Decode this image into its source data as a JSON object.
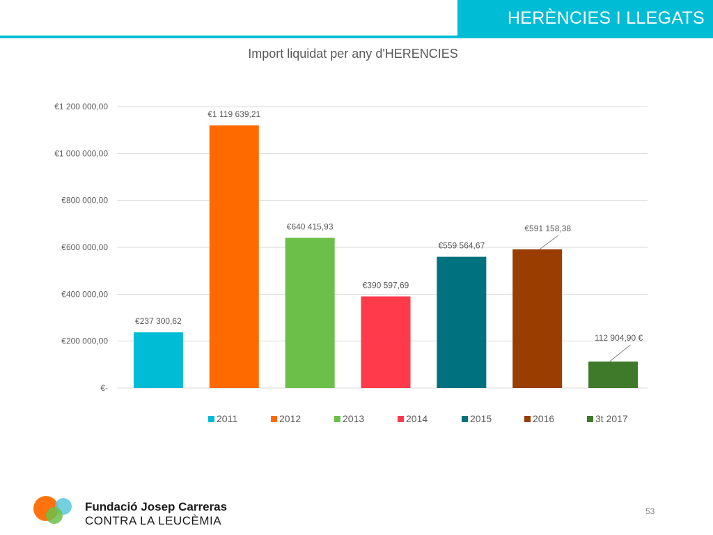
{
  "header": {
    "title": "HERÈNCIES I LLEGATS",
    "accent_color": "#00BCD4"
  },
  "footer": {
    "org_name": "Fundació Josep Carreras",
    "org_sub": "CONTRA LA LEUCÈMIA",
    "page_number": "53",
    "logo_icon": "overlapping-circles-logo"
  },
  "chart_data": {
    "type": "bar",
    "title": "Import liquidat per any d'HERENCIES",
    "xlabel": "",
    "ylabel": "",
    "categories": [
      "2011",
      "2012",
      "2013",
      "2014",
      "2015",
      "2016",
      "3t 2017"
    ],
    "values": [
      237300.62,
      1119639.21,
      640415.93,
      390597.69,
      559564.67,
      591158.38,
      112904.9
    ],
    "data_labels": [
      "€237 300,62",
      "€1 119 639,21",
      "€640 415,93",
      "€390 597,69",
      "€559 564,67",
      "€591 158,38",
      "112 904,90 €"
    ],
    "colors": [
      "#00BCD4",
      "#FF6A00",
      "#6CC04A",
      "#FF3A4A",
      "#00727F",
      "#993D00",
      "#3F7A2B"
    ],
    "ylim": [
      0,
      1200000
    ],
    "yticks": [
      0,
      200000,
      400000,
      600000,
      800000,
      1000000,
      1200000
    ],
    "ytick_labels": [
      "€-",
      "€200 000,00",
      "€400 000,00",
      "€600 000,00",
      "€800 000,00",
      "€1 000 000,00",
      "€1 200 000,00"
    ],
    "grid": true,
    "legend": "bottom"
  }
}
